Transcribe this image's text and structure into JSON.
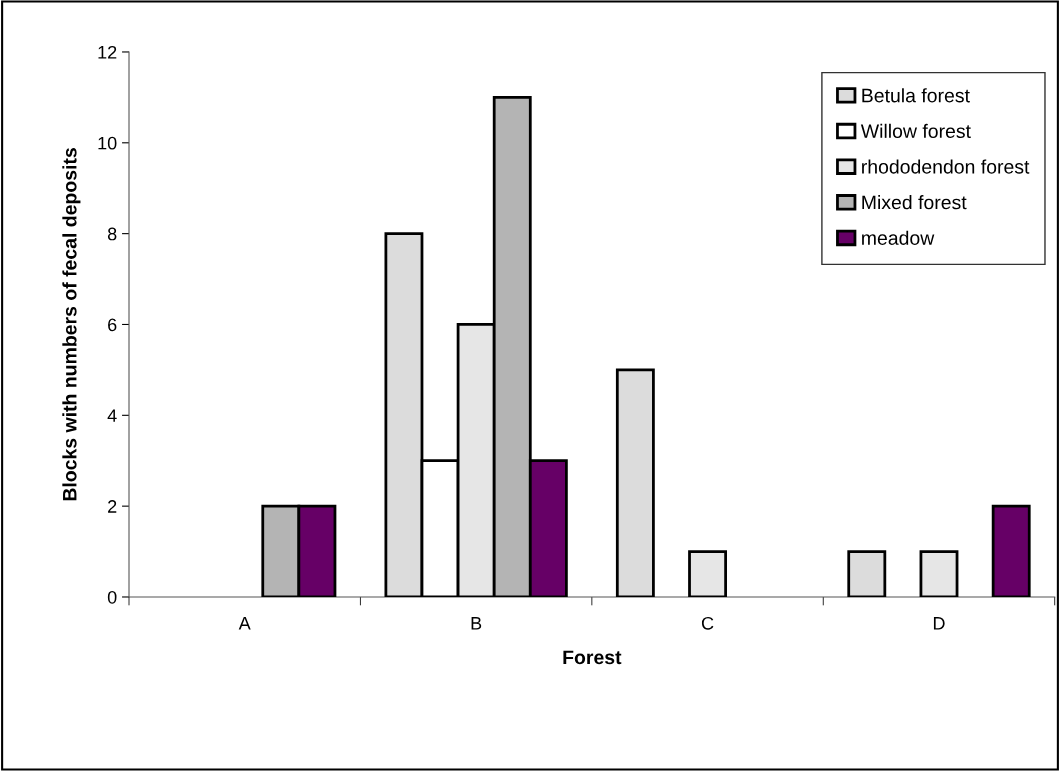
{
  "chart_data": {
    "type": "bar",
    "xlabel": "Forest",
    "ylabel": "Blocks with numbers of fecal deposits",
    "categories": [
      "A",
      "B",
      "C",
      "D"
    ],
    "series": [
      {
        "name": "Betula forest",
        "color": "#dcdcdc",
        "values": [
          null,
          8,
          5,
          1
        ]
      },
      {
        "name": "Willow forest",
        "color": "#ffffff",
        "values": [
          null,
          3,
          null,
          null
        ]
      },
      {
        "name": "rhododendon forest",
        "color": "#e6e6e6",
        "values": [
          null,
          6,
          1,
          1
        ]
      },
      {
        "name": "Mixed forest",
        "color": "#b4b4b4",
        "values": [
          2,
          11,
          null,
          null
        ]
      },
      {
        "name": "meadow",
        "color": "#660066",
        "values": [
          2,
          3,
          null,
          2
        ]
      }
    ],
    "ylim": [
      0,
      12
    ],
    "yticks": [
      0,
      2,
      4,
      6,
      8,
      10,
      12
    ],
    "grid": false,
    "legend": "top right"
  }
}
